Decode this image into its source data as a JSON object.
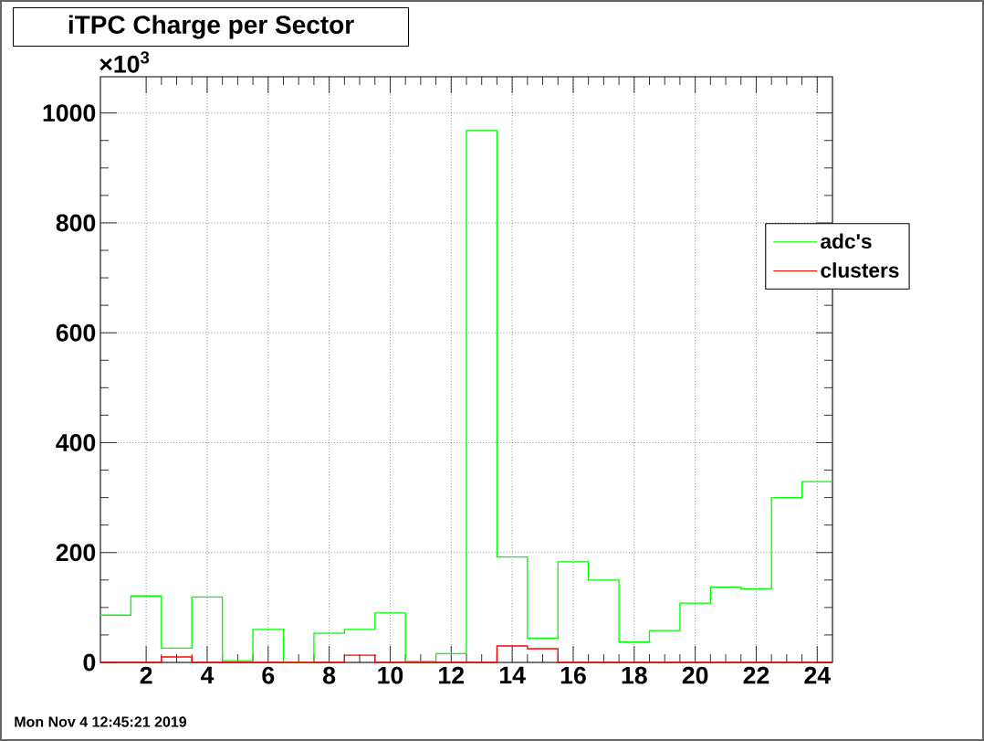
{
  "chart_data": {
    "type": "histogram",
    "title": "iTPC Charge per Sector",
    "bins": [
      0.5,
      1.5,
      2.5,
      3.5,
      4.5,
      5.5,
      6.5,
      7.5,
      8.5,
      9.5,
      10.5,
      11.5,
      12.5,
      13.5,
      14.5,
      15.5,
      16.5,
      17.5,
      18.5,
      19.5,
      20.5,
      21.5,
      22.5,
      23.5,
      24.5
    ],
    "series": [
      {
        "name": "adc's",
        "color": "#00ff00",
        "values": [
          86,
          121,
          26,
          119,
          3,
          60,
          0,
          53,
          60,
          90,
          2,
          16,
          968,
          192,
          44,
          183,
          150,
          37,
          58,
          108,
          137,
          134,
          300,
          329
        ]
      },
      {
        "name": "clusters",
        "color": "#ff0000",
        "values": [
          0,
          0,
          10,
          0,
          0,
          0,
          0,
          0,
          13,
          0,
          0,
          0,
          0,
          30,
          25,
          0,
          0,
          0,
          0,
          0,
          0,
          0,
          0,
          0
        ]
      }
    ],
    "xlim": [
      0.5,
      24.5
    ],
    "ylim": [
      0,
      1066
    ],
    "xticks": [
      2,
      4,
      6,
      8,
      10,
      12,
      14,
      16,
      18,
      20,
      22,
      24
    ],
    "yticks": [
      0,
      200,
      400,
      600,
      800,
      1000
    ],
    "grid": true,
    "legend": "right",
    "annotations": [
      "×10$^{3}$",
      "Mon Nov  4 12:45:21 2019"
    ]
  }
}
